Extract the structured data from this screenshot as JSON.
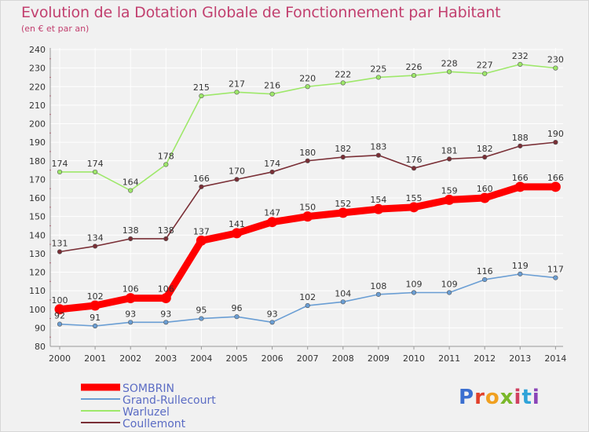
{
  "title": "Evolution de la Dotation Globale de Fonctionnement par Habitant",
  "subtitle": "(en € et par an)",
  "logo_text": "Proxiti",
  "chart_data": {
    "type": "line",
    "title": "Evolution de la Dotation Globale de Fonctionnement par Habitant",
    "subtitle": "(en € et par an)",
    "xlabel": "",
    "ylabel": "",
    "ylim": [
      80,
      240
    ],
    "ytick_step": 10,
    "grid": true,
    "legend": "bottom-left",
    "categories": [
      "2000",
      "2001",
      "2002",
      "2003",
      "2004",
      "2005",
      "2006",
      "2007",
      "2008",
      "2009",
      "2010",
      "2011",
      "2012",
      "2013",
      "2014"
    ],
    "series": [
      {
        "name": "SOMBRIN",
        "color": "#ff0000",
        "bold": true,
        "values": [
          100,
          102,
          106,
          106,
          137,
          141,
          147,
          150,
          152,
          154,
          155,
          159,
          160,
          166,
          166
        ]
      },
      {
        "name": "Grand-Rullecourt",
        "color": "#6a9ed4",
        "bold": false,
        "values": [
          92,
          91,
          93,
          93,
          95,
          96,
          93,
          102,
          104,
          108,
          109,
          109,
          116,
          119,
          117
        ]
      },
      {
        "name": "Warluzel",
        "color": "#9ee86a",
        "bold": false,
        "values": [
          174,
          174,
          164,
          178,
          215,
          217,
          216,
          220,
          222,
          225,
          226,
          228,
          227,
          232,
          230
        ]
      },
      {
        "name": "Coullemont",
        "color": "#7a2f36",
        "bold": false,
        "values": [
          131,
          134,
          138,
          138,
          166,
          170,
          174,
          180,
          182,
          183,
          176,
          181,
          182,
          188,
          190
        ]
      }
    ]
  }
}
